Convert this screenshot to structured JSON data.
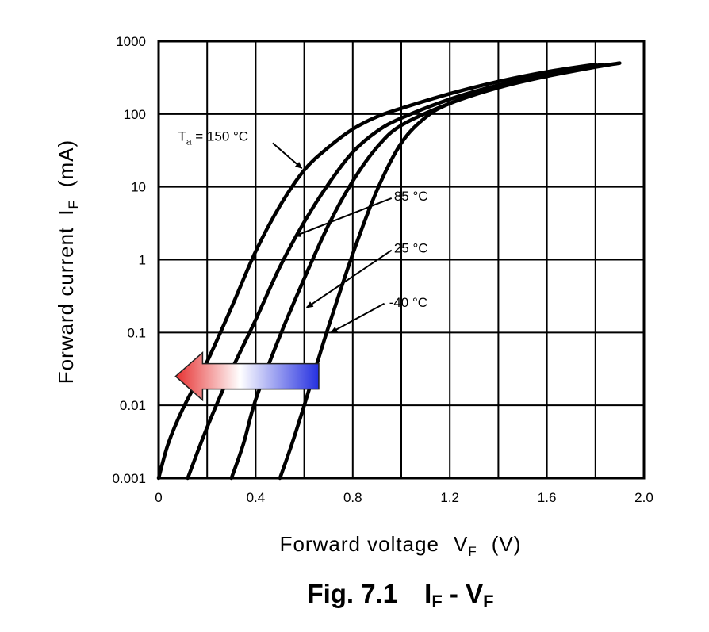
{
  "chart_data": {
    "type": "line",
    "title": "Fig. 7.1",
    "title_expr": {
      "a": "I",
      "a_sub": "F",
      "sep": " - ",
      "b": "V",
      "b_sub": "F"
    },
    "xlabel": {
      "text": "Forward voltage",
      "sym": "V",
      "sub": "F",
      "unit": "(V)"
    },
    "ylabel": {
      "text": "Forward current",
      "sym": "I",
      "sub": "F",
      "unit": "(mA)"
    },
    "xlim": [
      0,
      2.0
    ],
    "ylim": [
      0.001,
      1000
    ],
    "yscale": "log",
    "grid": true,
    "x_ticks": [
      {
        "value": 0,
        "label": "0"
      },
      {
        "value": 0.4,
        "label": "0.4"
      },
      {
        "value": 0.8,
        "label": "0.8"
      },
      {
        "value": 1.2,
        "label": "1.2"
      },
      {
        "value": 1.6,
        "label": "1.6"
      },
      {
        "value": 2.0,
        "label": "2.0"
      }
    ],
    "y_ticks": [
      {
        "value": 0.001,
        "label": "0.001"
      },
      {
        "value": 0.01,
        "label": "0.01"
      },
      {
        "value": 0.1,
        "label": "0.1"
      },
      {
        "value": 1,
        "label": "1"
      },
      {
        "value": 10,
        "label": "10"
      },
      {
        "value": 100,
        "label": "100"
      },
      {
        "value": 1000,
        "label": "1000"
      }
    ],
    "series": [
      {
        "name": "T_a = 150 °C",
        "label_parts": [
          "T",
          "a",
          " = 150 °C"
        ],
        "label_at": [
          0.08,
          50
        ],
        "arrow_from": [
          0.47,
          40
        ],
        "arrow_to": [
          0.59,
          18
        ],
        "x": [
          0.0,
          0.04,
          0.1,
          0.2,
          0.3,
          0.4,
          0.5,
          0.6,
          0.7,
          0.8,
          0.9,
          1.0,
          1.2,
          1.4,
          1.6,
          1.8
        ],
        "y": [
          0.001,
          0.003,
          0.009,
          0.04,
          0.22,
          1.3,
          5.5,
          17,
          35,
          62,
          92,
          120,
          190,
          280,
          380,
          480
        ]
      },
      {
        "name": "85 °C",
        "label_parts": [
          "",
          "",
          "85 °C"
        ],
        "label_at": [
          0.97,
          7.5
        ],
        "arrow_from": [
          0.96,
          7
        ],
        "arrow_to": [
          0.56,
          2.1
        ],
        "x": [
          0.12,
          0.2,
          0.3,
          0.4,
          0.5,
          0.6,
          0.7,
          0.8,
          0.9,
          1.0,
          1.2,
          1.4,
          1.6,
          1.83
        ],
        "y": [
          0.001,
          0.005,
          0.03,
          0.15,
          0.8,
          3.3,
          11,
          30,
          58,
          88,
          160,
          250,
          350,
          480
        ]
      },
      {
        "name": "25 °C",
        "label_parts": [
          "",
          "",
          "25 °C"
        ],
        "label_at": [
          0.97,
          1.45
        ],
        "arrow_from": [
          0.96,
          1.35
        ],
        "arrow_to": [
          0.61,
          0.22
        ],
        "x": [
          0.3,
          0.35,
          0.4,
          0.5,
          0.6,
          0.7,
          0.8,
          0.9,
          1.0,
          1.2,
          1.4,
          1.6,
          1.86
        ],
        "y": [
          0.001,
          0.003,
          0.012,
          0.09,
          0.55,
          3,
          12,
          35,
          70,
          140,
          230,
          330,
          480
        ]
      },
      {
        "name": "-40 °C",
        "label_parts": [
          "",
          "",
          "-40 °C"
        ],
        "label_at": [
          0.95,
          0.26
        ],
        "arrow_from": [
          0.93,
          0.25
        ],
        "arrow_to": [
          0.71,
          0.1
        ],
        "x": [
          0.5,
          0.55,
          0.6,
          0.65,
          0.7,
          0.8,
          0.9,
          1.0,
          1.1,
          1.2,
          1.4,
          1.6,
          1.9
        ],
        "y": [
          0.001,
          0.003,
          0.01,
          0.035,
          0.12,
          1.2,
          9,
          40,
          90,
          140,
          240,
          350,
          500
        ]
      }
    ],
    "overlay_arrow": {
      "direction": "left",
      "gradient": [
        "#e63030",
        "#ffffff",
        "#2530e0"
      ],
      "x_range": [
        0.07,
        0.66
      ],
      "y": 0.025
    }
  }
}
